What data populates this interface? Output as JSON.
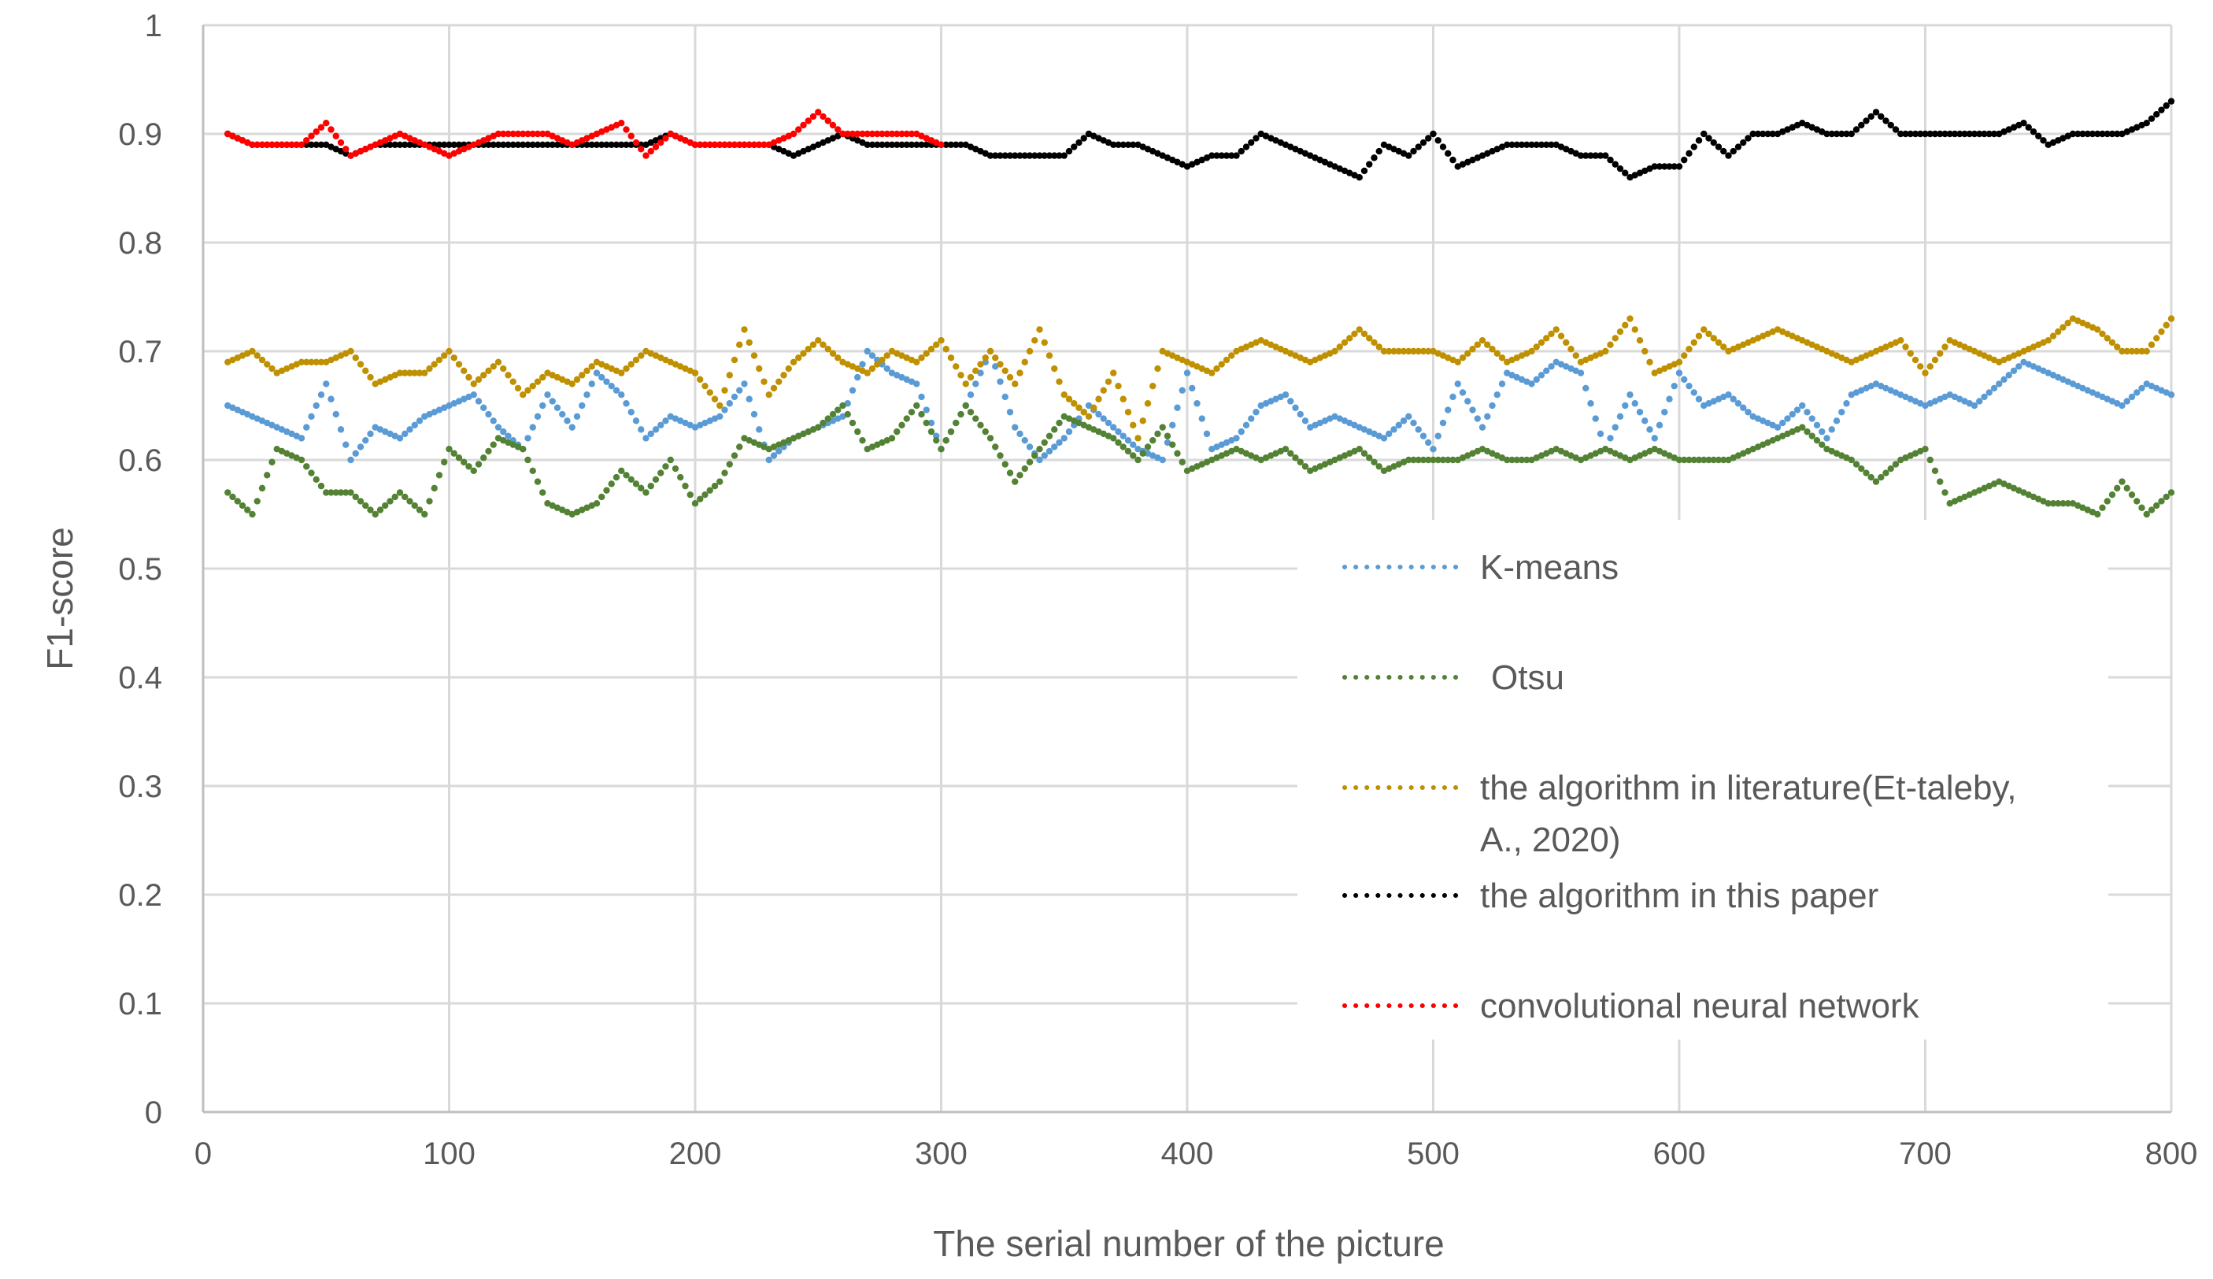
{
  "chart_data": {
    "type": "line",
    "title": "",
    "xlabel": "The serial number of the picture",
    "ylabel": "F1-score",
    "xlim": [
      0,
      800
    ],
    "ylim": [
      0,
      1
    ],
    "x_ticks": [
      "0",
      "100",
      "200",
      "300",
      "400",
      "500",
      "600",
      "700",
      "800"
    ],
    "y_ticks": [
      "0",
      "0.1",
      "0.2",
      "0.3",
      "0.4",
      "0.5",
      "0.6",
      "0.7",
      "0.8",
      "0.9",
      "1"
    ],
    "grid": true,
    "legend_position": "bottom-right",
    "marker_style": "dotted",
    "series": [
      {
        "name": "K-means",
        "color": "#5b9bd5",
        "x": [
          10,
          20,
          30,
          40,
          50,
          60,
          70,
          80,
          90,
          100,
          110,
          120,
          130,
          140,
          150,
          160,
          170,
          180,
          190,
          200,
          210,
          220,
          230,
          240,
          250,
          260,
          270,
          280,
          290,
          300,
          310,
          320,
          330,
          340,
          350,
          360,
          370,
          380,
          390,
          400,
          410,
          420,
          430,
          440,
          450,
          460,
          470,
          480,
          490,
          500,
          510,
          520,
          530,
          540,
          550,
          560,
          570,
          580,
          590,
          600,
          610,
          620,
          630,
          640,
          650,
          660,
          670,
          680,
          690,
          700,
          710,
          720,
          730,
          740,
          750,
          760,
          770,
          780,
          790,
          800
        ],
        "values": [
          0.65,
          0.64,
          0.63,
          0.62,
          0.67,
          0.6,
          0.63,
          0.62,
          0.64,
          0.65,
          0.66,
          0.63,
          0.61,
          0.66,
          0.63,
          0.68,
          0.66,
          0.62,
          0.64,
          0.63,
          0.64,
          0.67,
          0.6,
          0.62,
          0.63,
          0.64,
          0.7,
          0.68,
          0.67,
          0.61,
          0.65,
          0.7,
          0.63,
          0.6,
          0.62,
          0.65,
          0.63,
          0.61,
          0.6,
          0.68,
          0.61,
          0.62,
          0.65,
          0.66,
          0.63,
          0.64,
          0.63,
          0.62,
          0.64,
          0.61,
          0.67,
          0.63,
          0.68,
          0.67,
          0.69,
          0.68,
          0.61,
          0.66,
          0.62,
          0.68,
          0.65,
          0.66,
          0.64,
          0.63,
          0.65,
          0.62,
          0.66,
          0.67,
          0.66,
          0.65,
          0.66,
          0.65,
          0.67,
          0.69,
          0.68,
          0.67,
          0.66,
          0.65,
          0.67,
          0.66
        ]
      },
      {
        "name": "Otsu",
        "color": "#548235",
        "x": [
          10,
          20,
          30,
          40,
          50,
          60,
          70,
          80,
          90,
          100,
          110,
          120,
          130,
          140,
          150,
          160,
          170,
          180,
          190,
          200,
          210,
          220,
          230,
          240,
          250,
          260,
          270,
          280,
          290,
          300,
          310,
          320,
          330,
          340,
          350,
          360,
          370,
          380,
          390,
          400,
          410,
          420,
          430,
          440,
          450,
          460,
          470,
          480,
          490,
          500,
          510,
          520,
          530,
          540,
          550,
          560,
          570,
          580,
          590,
          600,
          610,
          620,
          630,
          640,
          650,
          660,
          670,
          680,
          690,
          700,
          710,
          720,
          730,
          740,
          750,
          760,
          770,
          780,
          790,
          800
        ],
        "values": [
          0.57,
          0.55,
          0.61,
          0.6,
          0.57,
          0.57,
          0.55,
          0.57,
          0.55,
          0.61,
          0.59,
          0.62,
          0.61,
          0.56,
          0.55,
          0.56,
          0.59,
          0.57,
          0.6,
          0.56,
          0.58,
          0.62,
          0.61,
          0.62,
          0.63,
          0.65,
          0.61,
          0.62,
          0.65,
          0.61,
          0.65,
          0.62,
          0.58,
          0.61,
          0.64,
          0.63,
          0.62,
          0.6,
          0.63,
          0.59,
          0.6,
          0.61,
          0.6,
          0.61,
          0.59,
          0.6,
          0.61,
          0.59,
          0.6,
          0.6,
          0.6,
          0.61,
          0.6,
          0.6,
          0.61,
          0.6,
          0.61,
          0.6,
          0.61,
          0.6,
          0.6,
          0.6,
          0.61,
          0.62,
          0.63,
          0.61,
          0.6,
          0.58,
          0.6,
          0.61,
          0.56,
          0.57,
          0.58,
          0.57,
          0.56,
          0.56,
          0.55,
          0.58,
          0.55,
          0.57
        ]
      },
      {
        "name": "the algorithm in literature(Et-taleby, A., 2020)",
        "color": "#bf9000",
        "x": [
          10,
          20,
          30,
          40,
          50,
          60,
          70,
          80,
          90,
          100,
          110,
          120,
          130,
          140,
          150,
          160,
          170,
          180,
          190,
          200,
          210,
          220,
          230,
          240,
          250,
          260,
          270,
          280,
          290,
          300,
          310,
          320,
          330,
          340,
          350,
          360,
          370,
          380,
          390,
          400,
          410,
          420,
          430,
          440,
          450,
          460,
          470,
          480,
          490,
          500,
          510,
          520,
          530,
          540,
          550,
          560,
          570,
          580,
          590,
          600,
          610,
          620,
          630,
          640,
          650,
          660,
          670,
          680,
          690,
          700,
          710,
          720,
          730,
          740,
          750,
          760,
          770,
          780,
          790,
          800
        ],
        "values": [
          0.69,
          0.7,
          0.68,
          0.69,
          0.69,
          0.7,
          0.67,
          0.68,
          0.68,
          0.7,
          0.67,
          0.69,
          0.66,
          0.68,
          0.67,
          0.69,
          0.68,
          0.7,
          0.69,
          0.68,
          0.65,
          0.72,
          0.66,
          0.69,
          0.71,
          0.69,
          0.68,
          0.7,
          0.69,
          0.71,
          0.67,
          0.7,
          0.67,
          0.72,
          0.66,
          0.64,
          0.68,
          0.62,
          0.7,
          0.69,
          0.68,
          0.7,
          0.71,
          0.7,
          0.69,
          0.7,
          0.72,
          0.7,
          0.7,
          0.7,
          0.69,
          0.71,
          0.69,
          0.7,
          0.72,
          0.69,
          0.7,
          0.73,
          0.68,
          0.69,
          0.72,
          0.7,
          0.71,
          0.72,
          0.71,
          0.7,
          0.69,
          0.7,
          0.71,
          0.68,
          0.71,
          0.7,
          0.69,
          0.7,
          0.71,
          0.73,
          0.72,
          0.7,
          0.7,
          0.73
        ]
      },
      {
        "name": "the algorithm in this paper",
        "color": "#000000",
        "x": [
          10,
          20,
          30,
          40,
          50,
          60,
          70,
          80,
          90,
          100,
          110,
          120,
          130,
          140,
          150,
          160,
          170,
          180,
          190,
          200,
          210,
          220,
          230,
          240,
          250,
          260,
          270,
          280,
          290,
          300,
          310,
          320,
          330,
          340,
          350,
          360,
          370,
          380,
          390,
          400,
          410,
          420,
          430,
          440,
          450,
          460,
          470,
          480,
          490,
          500,
          510,
          520,
          530,
          540,
          550,
          560,
          570,
          580,
          590,
          600,
          610,
          620,
          630,
          640,
          650,
          660,
          670,
          680,
          690,
          700,
          710,
          720,
          730,
          740,
          750,
          760,
          770,
          780,
          790,
          800
        ],
        "values": [
          0.9,
          0.89,
          0.89,
          0.89,
          0.89,
          0.88,
          0.89,
          0.89,
          0.89,
          0.89,
          0.89,
          0.89,
          0.89,
          0.89,
          0.89,
          0.89,
          0.89,
          0.89,
          0.9,
          0.89,
          0.89,
          0.89,
          0.89,
          0.88,
          0.89,
          0.9,
          0.89,
          0.89,
          0.89,
          0.89,
          0.89,
          0.88,
          0.88,
          0.88,
          0.88,
          0.9,
          0.89,
          0.89,
          0.88,
          0.87,
          0.88,
          0.88,
          0.9,
          0.89,
          0.88,
          0.87,
          0.86,
          0.89,
          0.88,
          0.9,
          0.87,
          0.88,
          0.89,
          0.89,
          0.89,
          0.88,
          0.88,
          0.86,
          0.87,
          0.87,
          0.9,
          0.88,
          0.9,
          0.9,
          0.91,
          0.9,
          0.9,
          0.92,
          0.9,
          0.9,
          0.9,
          0.9,
          0.9,
          0.91,
          0.89,
          0.9,
          0.9,
          0.9,
          0.91,
          0.93
        ]
      },
      {
        "name": "convolutional neural network",
        "color": "#ff0000",
        "x": [
          10,
          20,
          30,
          40,
          50,
          60,
          70,
          80,
          90,
          100,
          110,
          120,
          130,
          140,
          150,
          160,
          170,
          180,
          190,
          200,
          210,
          220,
          230,
          240,
          250,
          260,
          270,
          280,
          290,
          300
        ],
        "values": [
          0.9,
          0.89,
          0.89,
          0.89,
          0.91,
          0.88,
          0.89,
          0.9,
          0.89,
          0.88,
          0.89,
          0.9,
          0.9,
          0.9,
          0.89,
          0.9,
          0.91,
          0.88,
          0.9,
          0.89,
          0.89,
          0.89,
          0.89,
          0.9,
          0.92,
          0.9,
          0.9,
          0.9,
          0.9,
          0.89
        ]
      }
    ]
  }
}
